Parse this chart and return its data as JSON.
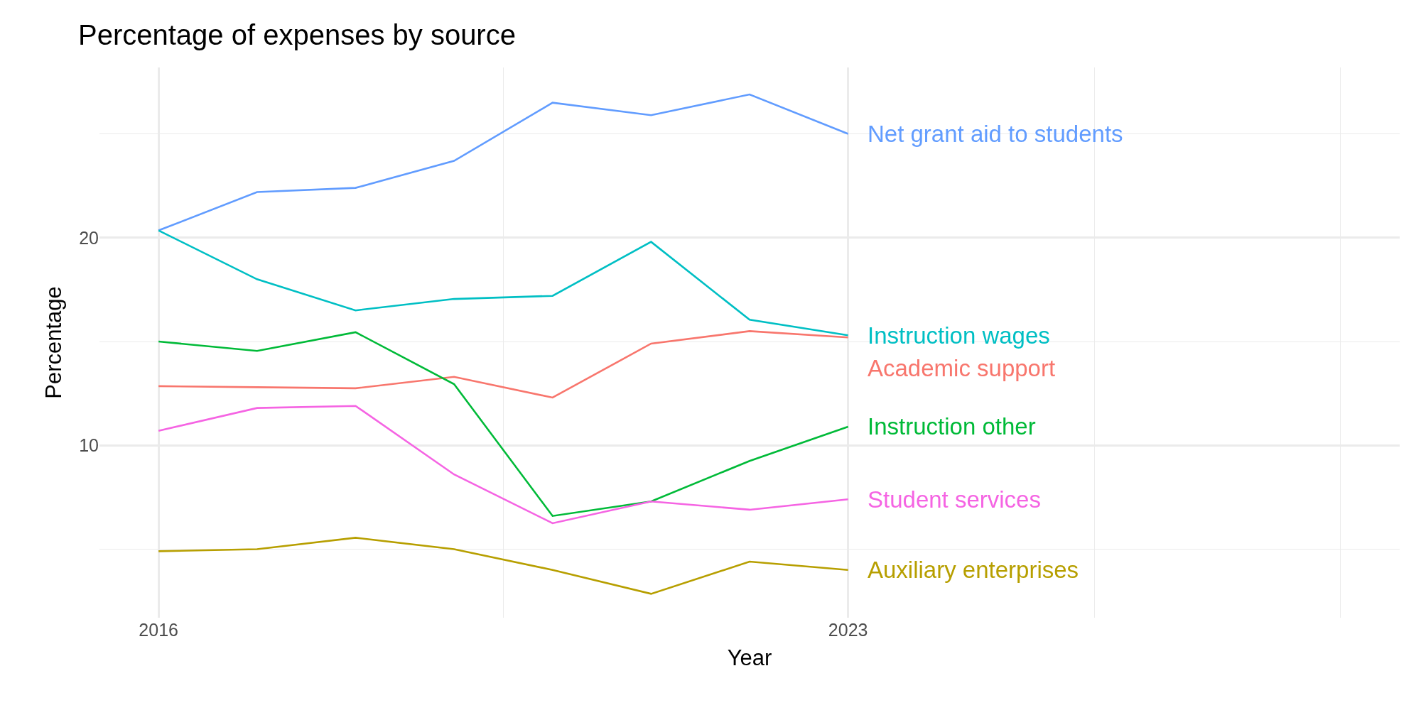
{
  "chart_data": {
    "type": "line",
    "title": "Percentage of expenses by source",
    "xlabel": "Year",
    "ylabel": "Percentage",
    "x": [
      2016,
      2017,
      2018,
      2019,
      2020,
      2021,
      2022,
      2023
    ],
    "series": [
      {
        "name": "Net grant aid to students",
        "color": "#619cff",
        "values": [
          20.35,
          22.2,
          22.4,
          23.7,
          26.5,
          25.9,
          26.9,
          25.0
        ]
      },
      {
        "name": "Instruction wages",
        "color": "#00bfc4",
        "values": [
          20.35,
          18.0,
          16.5,
          17.05,
          17.2,
          19.8,
          16.05,
          15.3
        ]
      },
      {
        "name": "Academic support",
        "color": "#f8766d",
        "values": [
          12.85,
          12.8,
          12.75,
          13.3,
          12.3,
          14.9,
          15.5,
          15.2
        ]
      },
      {
        "name": "Instruction other",
        "color": "#00ba38",
        "values": [
          15.0,
          14.55,
          15.45,
          12.95,
          6.6,
          7.3,
          9.25,
          10.9
        ]
      },
      {
        "name": "Student services",
        "color": "#f564e3",
        "values": [
          10.7,
          11.8,
          11.9,
          8.6,
          6.25,
          7.3,
          6.9,
          7.4
        ]
      },
      {
        "name": "Auxiliary enterprises",
        "color": "#b79f00",
        "values": [
          4.9,
          5.0,
          5.55,
          5.0,
          4.0,
          2.85,
          4.4,
          4.0
        ]
      }
    ],
    "xlim": [
      2015.4,
      2028.6
    ],
    "xticks": [
      2016,
      {
        "value": 2019.5,
        "label": null
      },
      2023,
      {
        "value": 2025.5,
        "label": null
      },
      {
        "value": 2028,
        "label": null
      }
    ],
    "ylim": [
      1.7,
      28.2
    ],
    "yticks": [
      {
        "value": 5,
        "label": null
      },
      10,
      {
        "value": 15,
        "label": null
      },
      20,
      {
        "value": 25,
        "label": null
      }
    ],
    "grid": true,
    "legend": false,
    "line_style": "solid",
    "marker": "none"
  }
}
